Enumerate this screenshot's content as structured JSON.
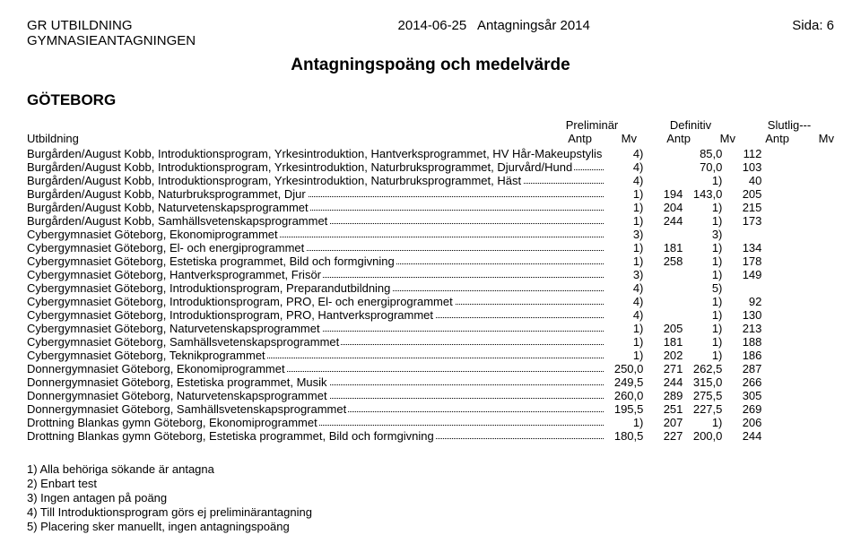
{
  "header": {
    "org_line1": "GR UTBILDNING",
    "org_line2": "GYMNASIEANTAGNINGEN",
    "date": "2014-06-25",
    "year_label": "Antagningsår 2014",
    "page_label": "Sida: 6",
    "title": "Antagningspoäng och medelvärde",
    "region": "GÖTEBORG"
  },
  "columns": {
    "utbildning": "Utbildning",
    "group1": "Preliminär",
    "group2": "Definitiv",
    "group3": "Slutlig---",
    "antp": "Antp",
    "mv": "Mv"
  },
  "rows": [
    {
      "label": "Burgården/August Kobb, Introduktionsprogram, Yrkesintroduktion, Hantverksprogrammet, HV Hår-Makeupstylis",
      "c": [
        "4)",
        "",
        "85,0",
        "112",
        "",
        ""
      ]
    },
    {
      "label": "Burgården/August Kobb, Introduktionsprogram, Yrkesintroduktion, Naturbruksprogrammet, Djurvård/Hund",
      "c": [
        "4)",
        "",
        "70,0",
        "103",
        "",
        ""
      ]
    },
    {
      "label": "Burgården/August Kobb, Introduktionsprogram, Yrkesintroduktion, Naturbruksprogrammet, Häst",
      "c": [
        "4)",
        "",
        "1)",
        "40",
        "",
        ""
      ]
    },
    {
      "label": "Burgården/August Kobb, Naturbruksprogrammet, Djur",
      "c": [
        "1)",
        "194",
        "143,0",
        "205",
        "",
        ""
      ]
    },
    {
      "label": "Burgården/August Kobb, Naturvetenskapsprogrammet",
      "c": [
        "1)",
        "204",
        "1)",
        "215",
        "",
        ""
      ]
    },
    {
      "label": "Burgården/August Kobb, Samhällsvetenskapsprogrammet",
      "c": [
        "1)",
        "244",
        "1)",
        "173",
        "",
        ""
      ]
    },
    {
      "label": "Cybergymnasiet Göteborg, Ekonomiprogrammet",
      "c": [
        "3)",
        "",
        "3)",
        "",
        "",
        ""
      ]
    },
    {
      "label": "Cybergymnasiet Göteborg, El- och energiprogrammet",
      "c": [
        "1)",
        "181",
        "1)",
        "134",
        "",
        ""
      ]
    },
    {
      "label": "Cybergymnasiet Göteborg, Estetiska programmet, Bild och formgivning",
      "c": [
        "1)",
        "258",
        "1)",
        "178",
        "",
        ""
      ]
    },
    {
      "label": "Cybergymnasiet Göteborg, Hantverksprogrammet, Frisör",
      "c": [
        "3)",
        "",
        "1)",
        "149",
        "",
        ""
      ]
    },
    {
      "label": "Cybergymnasiet Göteborg, Introduktionsprogram, Preparandutbildning",
      "c": [
        "4)",
        "",
        "5)",
        "",
        "",
        ""
      ]
    },
    {
      "label": "Cybergymnasiet Göteborg, Introduktionsprogram, PRO, El- och energiprogrammet",
      "c": [
        "4)",
        "",
        "1)",
        "92",
        "",
        ""
      ]
    },
    {
      "label": "Cybergymnasiet Göteborg, Introduktionsprogram, PRO, Hantverksprogrammet",
      "c": [
        "4)",
        "",
        "1)",
        "130",
        "",
        ""
      ]
    },
    {
      "label": "Cybergymnasiet Göteborg, Naturvetenskapsprogrammet",
      "c": [
        "1)",
        "205",
        "1)",
        "213",
        "",
        ""
      ]
    },
    {
      "label": "Cybergymnasiet Göteborg, Samhällsvetenskapsprogrammet",
      "c": [
        "1)",
        "181",
        "1)",
        "188",
        "",
        ""
      ]
    },
    {
      "label": "Cybergymnasiet Göteborg, Teknikprogrammet",
      "c": [
        "1)",
        "202",
        "1)",
        "186",
        "",
        ""
      ]
    },
    {
      "label": "Donnergymnasiet Göteborg, Ekonomiprogrammet",
      "c": [
        "250,0",
        "271",
        "262,5",
        "287",
        "",
        ""
      ]
    },
    {
      "label": "Donnergymnasiet Göteborg, Estetiska programmet, Musik",
      "c": [
        "249,5",
        "244",
        "315,0",
        "266",
        "",
        ""
      ]
    },
    {
      "label": "Donnergymnasiet Göteborg, Naturvetenskapsprogrammet",
      "c": [
        "260,0",
        "289",
        "275,5",
        "305",
        "",
        ""
      ]
    },
    {
      "label": "Donnergymnasiet Göteborg, Samhällsvetenskapsprogrammet",
      "c": [
        "195,5",
        "251",
        "227,5",
        "269",
        "",
        ""
      ]
    },
    {
      "label": "Drottning Blankas gymn Göteborg, Ekonomiprogrammet",
      "c": [
        "1)",
        "207",
        "1)",
        "206",
        "",
        ""
      ]
    },
    {
      "label": "Drottning Blankas gymn Göteborg, Estetiska programmet, Bild och formgivning",
      "c": [
        "180,5",
        "227",
        "200,0",
        "244",
        "",
        ""
      ]
    }
  ],
  "footnotes": [
    "1)  Alla behöriga sökande är antagna",
    "2)  Enbart test",
    "3)  Ingen antagen på poäng",
    "4)  Till Introduktionsprogram görs ej preliminärantagning",
    "5)  Placering sker manuellt, ingen antagningspoäng"
  ]
}
